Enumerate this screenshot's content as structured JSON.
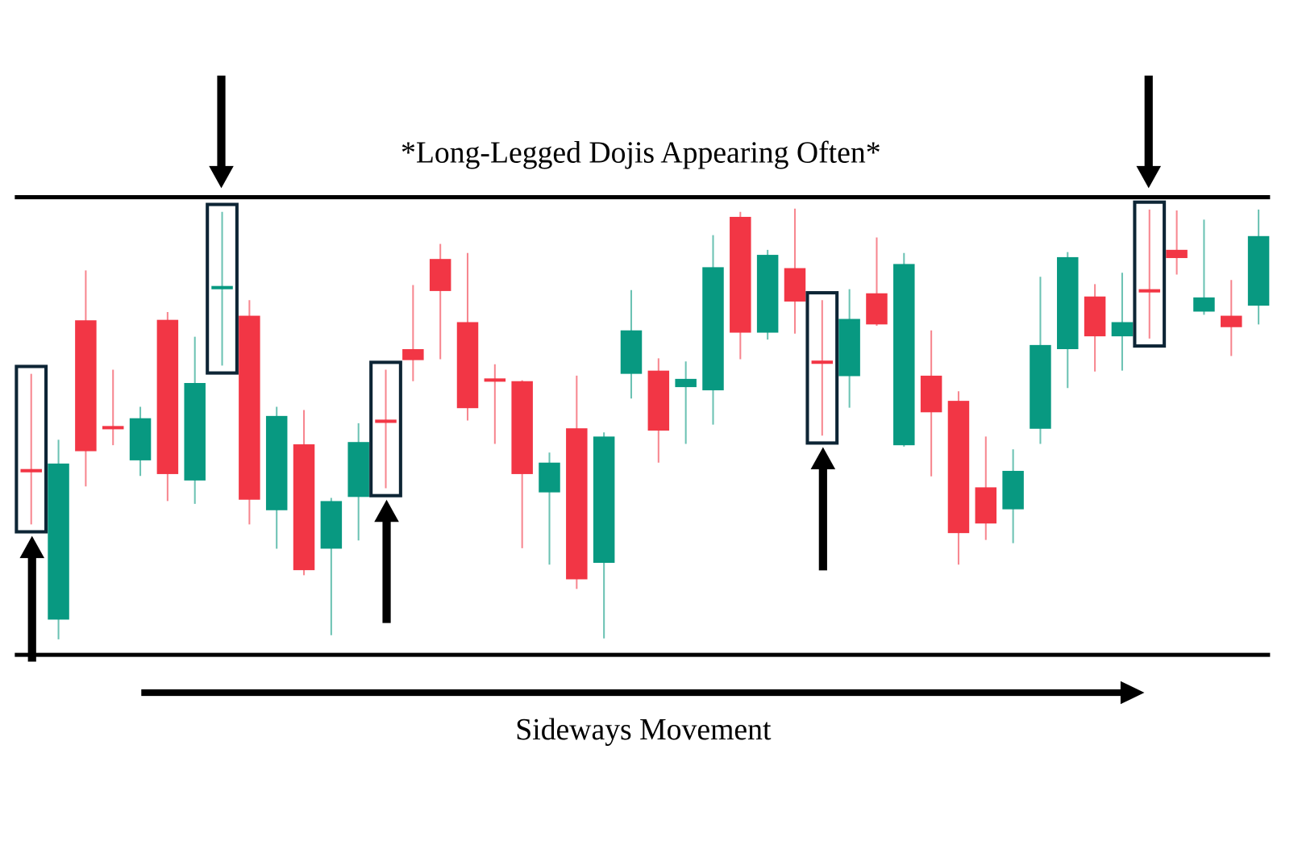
{
  "chart_data": {
    "type": "candlestick",
    "title": "*Long-Legged Dojis Appearing Often*",
    "xlabel": "Sideways Movement",
    "ylabel": "",
    "grid": false,
    "ylim": [
      0,
      100
    ],
    "colors": {
      "up": "#089981",
      "down": "#F23645",
      "highlight_box": "#0D2535",
      "range_lines": "#000000",
      "arrows": "#000000"
    },
    "range": {
      "support": 0,
      "resistance": 100
    },
    "highlighted_candles": [
      0,
      7,
      13,
      29,
      41
    ],
    "arrows_up_under": [
      0,
      13,
      29
    ],
    "arrows_down_over": [
      7,
      41
    ],
    "candles": [
      {
        "o": 40.6,
        "h": 61.4,
        "l": 28.5,
        "c": 40.4
      },
      {
        "o": 7.7,
        "h": 47.0,
        "l": 3.4,
        "c": 41.8
      },
      {
        "o": 73.1,
        "h": 84.0,
        "l": 36.8,
        "c": 44.5
      },
      {
        "o": 50.0,
        "h": 62.3,
        "l": 45.8,
        "c": 49.7
      },
      {
        "o": 42.5,
        "h": 54.2,
        "l": 39.1,
        "c": 51.7
      },
      {
        "o": 73.2,
        "h": 74.9,
        "l": 33.6,
        "c": 39.5
      },
      {
        "o": 38.1,
        "h": 69.5,
        "l": 33.0,
        "c": 59.4
      },
      {
        "o": 80.3,
        "h": 96.8,
        "l": 63.2,
        "c": 80.6
      },
      {
        "o": 74.1,
        "h": 77.5,
        "l": 28.5,
        "c": 33.9
      },
      {
        "o": 31.6,
        "h": 54.2,
        "l": 23.2,
        "c": 52.2
      },
      {
        "o": 46.0,
        "h": 53.5,
        "l": 17.4,
        "c": 18.5
      },
      {
        "o": 23.2,
        "h": 34.3,
        "l": 4.3,
        "c": 33.6
      },
      {
        "o": 34.5,
        "h": 50.6,
        "l": 25.0,
        "c": 46.5
      },
      {
        "o": 51.4,
        "h": 62.3,
        "l": 36.4,
        "c": 51.2
      },
      {
        "o": 66.8,
        "h": 80.8,
        "l": 59.8,
        "c": 64.4
      },
      {
        "o": 86.5,
        "h": 89.8,
        "l": 64.6,
        "c": 79.5
      },
      {
        "o": 72.7,
        "h": 87.8,
        "l": 51.2,
        "c": 53.9
      },
      {
        "o": 60.4,
        "h": 63.5,
        "l": 46.1,
        "c": 60.3
      },
      {
        "o": 59.8,
        "h": 60.0,
        "l": 23.3,
        "c": 39.5
      },
      {
        "o": 35.5,
        "h": 44.2,
        "l": 19.7,
        "c": 42.0
      },
      {
        "o": 49.5,
        "h": 61.0,
        "l": 14.4,
        "c": 16.5
      },
      {
        "o": 20.1,
        "h": 48.6,
        "l": 3.6,
        "c": 47.7
      },
      {
        "o": 61.4,
        "h": 79.7,
        "l": 56.0,
        "c": 70.9
      },
      {
        "o": 62.1,
        "h": 64.8,
        "l": 42.0,
        "c": 49.0
      },
      {
        "o": 58.5,
        "h": 64.1,
        "l": 46.1,
        "c": 60.3
      },
      {
        "o": 57.8,
        "h": 91.7,
        "l": 50.3,
        "c": 84.7
      },
      {
        "o": 95.7,
        "h": 96.8,
        "l": 64.6,
        "c": 70.4
      },
      {
        "o": 70.4,
        "h": 88.5,
        "l": 68.9,
        "c": 87.4
      },
      {
        "o": 84.5,
        "h": 97.5,
        "l": 70.2,
        "c": 77.2
      },
      {
        "o": 64.3,
        "h": 77.5,
        "l": 47.9,
        "c": 64.1
      },
      {
        "o": 60.9,
        "h": 79.9,
        "l": 54.0,
        "c": 73.4
      },
      {
        "o": 79.0,
        "h": 91.2,
        "l": 71.9,
        "c": 72.2
      },
      {
        "o": 45.8,
        "h": 87.8,
        "l": 45.5,
        "c": 85.4
      },
      {
        "o": 61.0,
        "h": 70.9,
        "l": 39.0,
        "c": 53.0
      },
      {
        "o": 55.5,
        "h": 57.6,
        "l": 19.7,
        "c": 26.6
      },
      {
        "o": 36.6,
        "h": 47.7,
        "l": 25.1,
        "c": 28.7
      },
      {
        "o": 31.8,
        "h": 44.9,
        "l": 24.4,
        "c": 40.2
      },
      {
        "o": 49.4,
        "h": 82.6,
        "l": 46.1,
        "c": 67.7
      },
      {
        "o": 66.8,
        "h": 88.0,
        "l": 58.3,
        "c": 86.9
      },
      {
        "o": 78.3,
        "h": 81.0,
        "l": 61.9,
        "c": 69.6
      },
      {
        "o": 69.6,
        "h": 83.5,
        "l": 62.1,
        "c": 72.7
      },
      {
        "o": 79.9,
        "h": 97.3,
        "l": 69.1,
        "c": 79.7
      },
      {
        "o": 88.5,
        "h": 97.1,
        "l": 83.1,
        "c": 86.7
      },
      {
        "o": 75.0,
        "h": 95.1,
        "l": 74.3,
        "c": 78.1
      },
      {
        "o": 74.1,
        "h": 81.9,
        "l": 65.3,
        "c": 71.6
      },
      {
        "o": 76.3,
        "h": 97.3,
        "l": 72.2,
        "c": 91.5
      }
    ]
  }
}
